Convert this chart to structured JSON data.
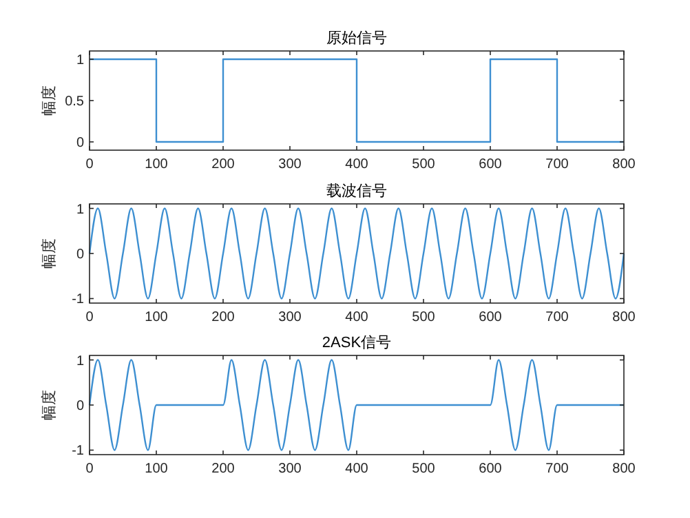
{
  "chart_data": [
    {
      "type": "step",
      "title": "原始信号",
      "ylabel": "幅度",
      "xlim": [
        0,
        800
      ],
      "xticks": [
        0,
        100,
        200,
        300,
        400,
        500,
        600,
        700,
        800
      ],
      "ylim": [
        -0.1,
        1.1
      ],
      "yticks": [
        0,
        0.5,
        1
      ],
      "grid": false,
      "series": [
        {
          "color": "#3d8fd1",
          "x": [
            0,
            100,
            200,
            400,
            600,
            700,
            800
          ],
          "values": [
            1,
            0,
            1,
            0,
            1,
            0,
            0
          ]
        }
      ]
    },
    {
      "type": "line",
      "title": "载波信号",
      "ylabel": "幅度",
      "xlim": [
        0,
        800
      ],
      "xticks": [
        0,
        100,
        200,
        300,
        400,
        500,
        600,
        700,
        800
      ],
      "ylim": [
        -1.1,
        1.1
      ],
      "yticks": [
        -1,
        0,
        1
      ],
      "grid": false,
      "series": [
        {
          "color": "#3d8fd1",
          "x": [
            0,
            12.5,
            25,
            37.5,
            50,
            62.5,
            75,
            87.5,
            100,
            112.5,
            125,
            137.5,
            150,
            162.5,
            175,
            187.5,
            200,
            212.5,
            225,
            237.5,
            250,
            262.5,
            275,
            287.5,
            300,
            312.5,
            325,
            337.5,
            350,
            362.5,
            375,
            387.5,
            400,
            412.5,
            425,
            437.5,
            450,
            462.5,
            475,
            487.5,
            500,
            512.5,
            525,
            537.5,
            550,
            562.5,
            575,
            587.5,
            600,
            612.5,
            625,
            637.5,
            650,
            662.5,
            675,
            687.5,
            700,
            712.5,
            725,
            737.5,
            750,
            762.5,
            775,
            787.5,
            800
          ],
          "values": [
            0,
            1,
            0,
            -1,
            0,
            1,
            0,
            -1,
            0,
            1,
            0,
            -1,
            0,
            1,
            0,
            -1,
            0,
            1,
            0,
            -1,
            0,
            1,
            0,
            -1,
            0,
            1,
            0,
            -1,
            0,
            1,
            0,
            -1,
            0,
            1,
            0,
            -1,
            0,
            1,
            0,
            -1,
            0,
            1,
            0,
            -1,
            0,
            1,
            0,
            -1,
            0,
            1,
            0,
            -1,
            0,
            1,
            0,
            -1,
            0,
            1,
            0,
            -1,
            0,
            1,
            0,
            -1,
            0
          ]
        }
      ]
    },
    {
      "type": "line",
      "title": "2ASK信号",
      "ylabel": "幅度",
      "xlim": [
        0,
        800
      ],
      "xticks": [
        0,
        100,
        200,
        300,
        400,
        500,
        600,
        700,
        800
      ],
      "ylim": [
        -1.1,
        1.1
      ],
      "yticks": [
        -1,
        0,
        1
      ],
      "grid": false,
      "series": [
        {
          "color": "#3d8fd1",
          "x": [
            0,
            12.5,
            25,
            37.5,
            50,
            62.5,
            75,
            87.5,
            100,
            200,
            212.5,
            225,
            237.5,
            250,
            262.5,
            275,
            287.5,
            300,
            312.5,
            325,
            337.5,
            350,
            362.5,
            375,
            387.5,
            400,
            600,
            612.5,
            625,
            637.5,
            650,
            662.5,
            675,
            687.5,
            700,
            800
          ],
          "values": [
            0,
            1,
            0,
            -1,
            0,
            1,
            0,
            -1,
            0,
            0,
            1,
            0,
            -1,
            0,
            1,
            0,
            -1,
            0,
            1,
            0,
            -1,
            0,
            1,
            0,
            -1,
            0,
            0,
            1,
            0,
            -1,
            0,
            1,
            0,
            -1,
            0,
            0
          ]
        }
      ]
    }
  ]
}
